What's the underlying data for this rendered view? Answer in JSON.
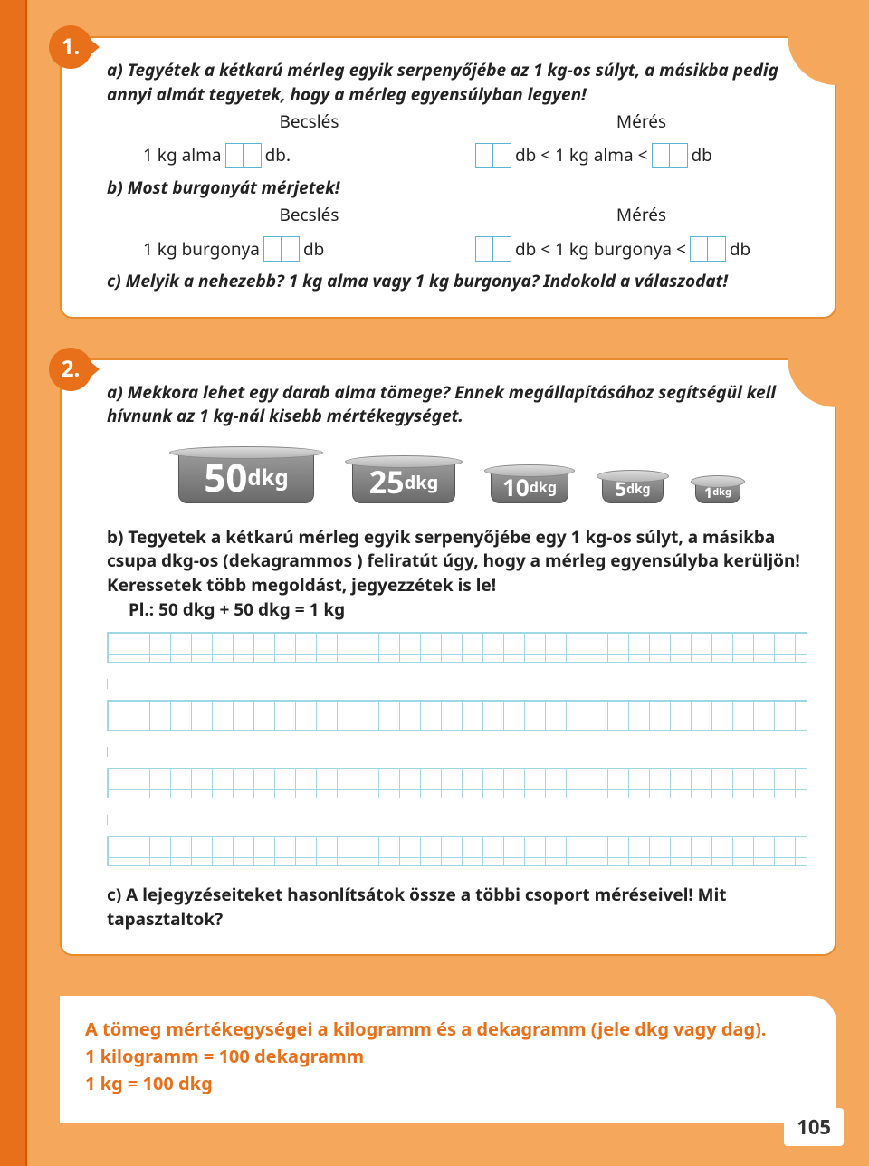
{
  "page_number": "105",
  "colors": {
    "page_bg": "#f5a85c",
    "margin": "#e8701a",
    "card_border": "#e88b2c",
    "accent": "#e8701a",
    "grid": "#9ed7e6"
  },
  "ex1": {
    "badge": "1.",
    "a_text": "a) Tegyétek a kétkarú mérleg egyik serpenyőjébe az 1 kg-os súlyt, a másikba pedig annyi almát tegyetek, hogy a mérleg egyensúlyban legyen!",
    "becsles": "Becslés",
    "meres": "Mérés",
    "alma_pre": "1 kg alma",
    "alma_post": "db.",
    "alma_range_pre": "db < 1 kg alma <",
    "alma_range_post": "db",
    "b_text": "b) Most burgonyát mérjetek!",
    "burg_pre": "1 kg burgonya",
    "burg_post": "db",
    "burg_range_pre": "db < 1 kg burgonya <",
    "burg_range_post": "db",
    "c_text": "c) Melyik a nehezebb? 1 kg alma vagy 1 kg burgonya? Indokold a válaszodat!"
  },
  "ex2": {
    "badge": "2.",
    "a_text": "a) Mekkora lehet egy darab alma tömege? Ennek megállapításához segítségül kell hívnunk az 1 kg-nál kisebb mértékegységet.",
    "weights": [
      {
        "num": "50",
        "unit": "dkg",
        "size": "w50"
      },
      {
        "num": "25",
        "unit": "dkg",
        "size": "w25"
      },
      {
        "num": "10",
        "unit": "dkg",
        "size": "w10"
      },
      {
        "num": "5",
        "unit": "dkg",
        "size": "w5"
      },
      {
        "num": "1",
        "unit": "dkg",
        "size": "w1"
      }
    ],
    "b_text": "b) Tegyetek a kétkarú mérleg egyik serpenyőjébe egy 1 kg-os súlyt, a másikba csupa dkg-os (dekagrammos ) feliratút úgy, hogy a mérleg egyensúlyba kerüljön! Keressetek több megoldást, jegyezzétek is le!",
    "b_example": "Pl.: 50 dkg + 50 dkg = 1 kg",
    "c_text": "c) A lejegyzéseiteket hasonlítsátok össze a többi csoport méréseivel! Mit tapasztaltok?"
  },
  "summary": {
    "line1": "A tömeg mértékegységei a kilogramm és a dekagramm (jele dkg vagy dag).",
    "line2": "1 kilogramm = 100 dekagramm",
    "line3": "1 kg = 100 dkg"
  }
}
